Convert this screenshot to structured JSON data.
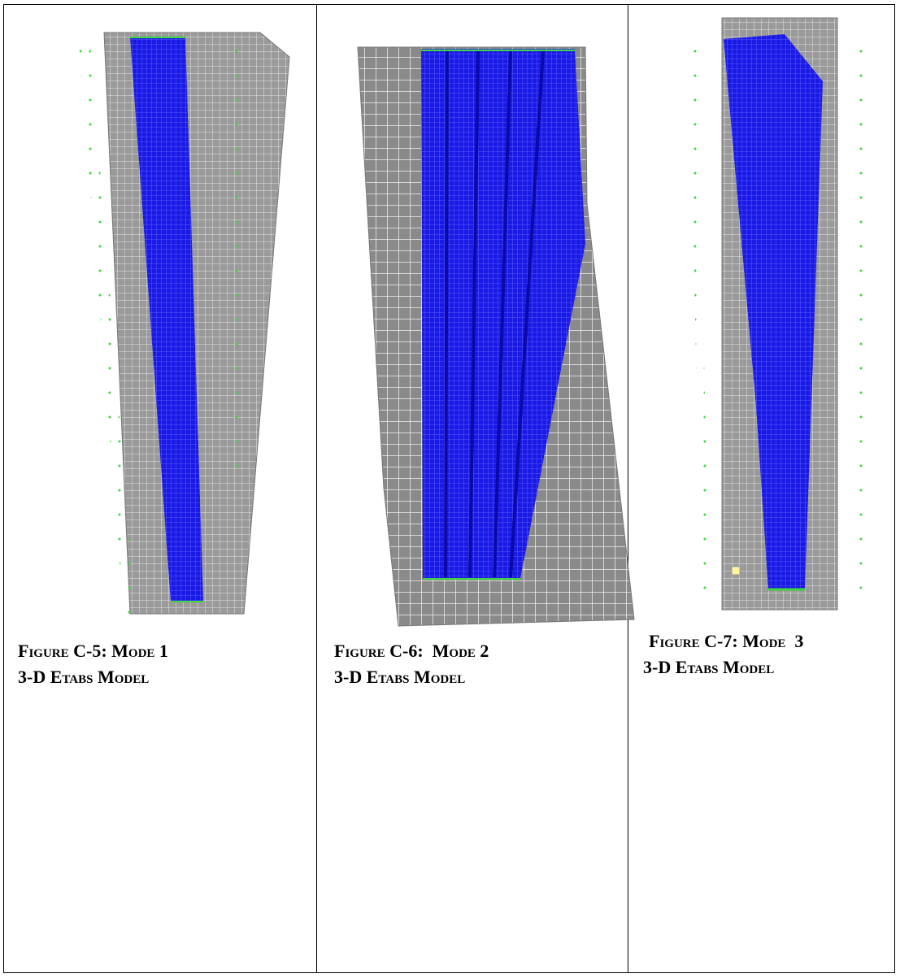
{
  "figures": [
    {
      "caption": "Figure C-5: Mode 1",
      "subcaption": "3-D Etabs Model"
    },
    {
      "caption": "Figure C-6:  Mode 2",
      "subcaption": "3-D Etabs Model"
    },
    {
      "caption": "Figure C-7: Mode  3",
      "subcaption": "3-D Etabs Model"
    }
  ]
}
